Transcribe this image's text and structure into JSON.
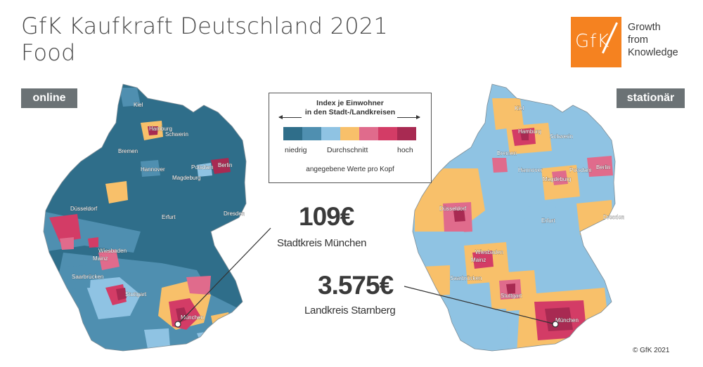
{
  "header": {
    "title_line1": "GfK Kaufkraft Deutschland 2021",
    "title_line2": "Food"
  },
  "logo": {
    "text": "GfK",
    "tagline": [
      "Growth",
      "from",
      "Knowledge"
    ],
    "color": "#f58220"
  },
  "maps": {
    "left_label": "online",
    "right_label": "stationär"
  },
  "legend": {
    "title_line1": "Index je Einwohner",
    "title_line2": "in den Stadt-/Landkreisen",
    "low_label": "niedrig",
    "mid_label": "Durchschnitt",
    "high_label": "hoch",
    "note": "angegebene Werte pro Kopf",
    "colors": [
      "#2f6e8a",
      "#4f8fb0",
      "#8fc3e3",
      "#f8c06a",
      "#e06b8c",
      "#d33c66",
      "#a82a52"
    ]
  },
  "callouts": {
    "munich_value": "109€",
    "munich_label": "Stadtkreis München",
    "starnberg_value": "3.575€",
    "starnberg_label": "Landkreis Starnberg"
  },
  "cities_left": [
    "Kiel",
    "Hamburg",
    "Schwerin",
    "Bremen",
    "Hannover",
    "Potsdam",
    "Berlin",
    "Magdeburg",
    "Düsseldorf",
    "Erfurt",
    "Dresden",
    "Wiesbaden",
    "Mainz",
    "Saarbrücken",
    "Stuttgart",
    "München"
  ],
  "cities_right": [
    "Kiel",
    "Hamburg",
    "Schwerin",
    "Bremen",
    "Hannover",
    "Potsdam",
    "Berlin",
    "Magdeburg",
    "Düsseldorf",
    "Erfurt",
    "Dresden",
    "Wiesbaden",
    "Mainz",
    "Saarbrücken",
    "Stuttgart",
    "München"
  ],
  "copyright": "© GfK 2021"
}
